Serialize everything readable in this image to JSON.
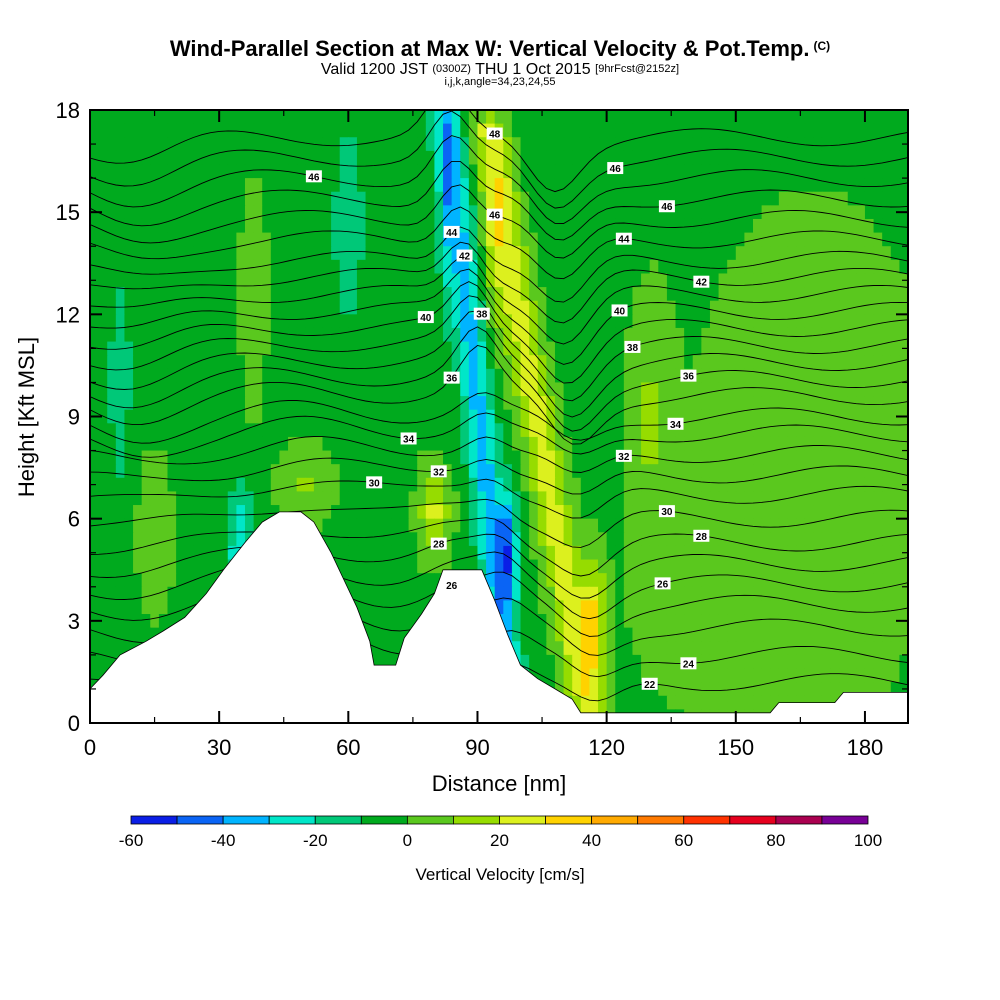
{
  "header": {
    "title": "Wind-Parallel Section at Max W: Vertical Velocity & Pot.Temp.",
    "copyright": "(C)",
    "valid_prefix": "Valid 1200 JST",
    "valid_z": "(0300Z)",
    "valid_date": "THU 1 Oct 2015",
    "fcst": "[9hrFcst@2152z]",
    "params": "i,j,k,angle=34,23,24,55"
  },
  "chart_data": {
    "type": "heatmap",
    "xlabel": "Distance [nm]",
    "ylabel": "Height [Kft MSL]",
    "xlim": [
      0,
      190
    ],
    "ylim": [
      0,
      18
    ],
    "xticks": [
      0,
      30,
      60,
      90,
      120,
      150,
      180
    ],
    "yticks": [
      0,
      3,
      6,
      9,
      12,
      15,
      18
    ],
    "colorbar": {
      "title": "Vertical Velocity [cm/s]",
      "ticks": [
        -60,
        -40,
        -20,
        0,
        20,
        40,
        60,
        80,
        100
      ],
      "bins": [
        -60,
        -50,
        -40,
        -30,
        -20,
        -10,
        0,
        10,
        20,
        30,
        40,
        50,
        60,
        70,
        80,
        90,
        100
      ],
      "colors": [
        "#0a1ee6",
        "#0a64f5",
        "#00b4ff",
        "#00e6c8",
        "#00c878",
        "#00aa1e",
        "#5ac81e",
        "#96dc00",
        "#dcf01e",
        "#ffd200",
        "#ffaa00",
        "#ff7a00",
        "#ff3200",
        "#e6001e",
        "#aa0050",
        "#780096"
      ]
    },
    "terrain": [
      [
        0,
        1.0
      ],
      [
        3,
        1.4
      ],
      [
        7,
        2.0
      ],
      [
        13,
        2.4
      ],
      [
        17,
        2.7
      ],
      [
        22,
        3.1
      ],
      [
        27,
        3.8
      ],
      [
        31,
        4.5
      ],
      [
        36,
        5.3
      ],
      [
        40,
        5.9
      ],
      [
        44,
        6.2
      ],
      [
        49,
        6.2
      ],
      [
        52,
        5.9
      ],
      [
        56,
        5.0
      ],
      [
        59,
        4.2
      ],
      [
        62,
        3.4
      ],
      [
        65,
        2.4
      ],
      [
        66,
        1.7
      ],
      [
        71,
        1.7
      ],
      [
        73,
        2.5
      ],
      [
        77,
        3.2
      ],
      [
        80,
        3.8
      ],
      [
        82,
        4.5
      ],
      [
        86,
        4.5
      ],
      [
        91,
        4.5
      ],
      [
        94,
        3.6
      ],
      [
        97,
        2.6
      ],
      [
        100,
        1.7
      ],
      [
        104,
        1.3
      ],
      [
        108,
        1.0
      ],
      [
        112,
        0.7
      ],
      [
        114,
        0.3
      ],
      [
        125,
        0.3
      ],
      [
        150,
        0.3
      ],
      [
        158,
        0.3
      ],
      [
        160,
        0.6
      ],
      [
        173,
        0.6
      ],
      [
        175,
        0.9
      ],
      [
        190,
        0.9
      ]
    ],
    "isentropes": [
      {
        "base": 1.2,
        "label": "22",
        "label_x": 130
      },
      {
        "base": 2.0,
        "label": "24",
        "label_x": 139
      },
      {
        "base": 2.8,
        "label": "",
        "label_x": 0
      },
      {
        "base": 3.5,
        "label": "26",
        "label_x": 84
      },
      {
        "base": 4.1,
        "label": "26",
        "label_x": 133
      },
      {
        "base": 4.7,
        "label": "28",
        "label_x": 81
      },
      {
        "base": 5.3,
        "label": "28",
        "label_x": 142
      },
      {
        "base": 6.0,
        "label": "30",
        "label_x": 134
      },
      {
        "base": 6.7,
        "label": "30",
        "label_x": 66
      },
      {
        "base": 7.3,
        "label": "32",
        "label_x": 81
      },
      {
        "base": 7.9,
        "label": "32",
        "label_x": 124
      },
      {
        "base": 8.5,
        "label": "34",
        "label_x": 74
      },
      {
        "base": 9.0,
        "label": "34",
        "label_x": 136
      },
      {
        "base": 9.6,
        "label": "36",
        "label_x": 84
      },
      {
        "base": 10.1,
        "label": "36",
        "label_x": 139
      },
      {
        "base": 10.6,
        "label": "38",
        "label_x": 91
      },
      {
        "base": 11.1,
        "label": "38",
        "label_x": 126
      },
      {
        "base": 11.6,
        "label": "40",
        "label_x": 78
      },
      {
        "base": 12.1,
        "label": "40",
        "label_x": 123
      },
      {
        "base": 12.6,
        "label": "42",
        "label_x": 87
      },
      {
        "base": 13.1,
        "label": "42",
        "label_x": 142
      },
      {
        "base": 13.6,
        "label": "44",
        "label_x": 84
      },
      {
        "base": 14.2,
        "label": "44",
        "label_x": 124
      },
      {
        "base": 14.8,
        "label": "46",
        "label_x": 94
      },
      {
        "base": 15.4,
        "label": "46",
        "label_x": 134
      },
      {
        "base": 16.0,
        "label": "46",
        "label_x": 52
      },
      {
        "base": 16.6,
        "label": "46",
        "label_x": 122
      },
      {
        "base": 17.2,
        "label": "48",
        "label_x": 94
      }
    ]
  }
}
